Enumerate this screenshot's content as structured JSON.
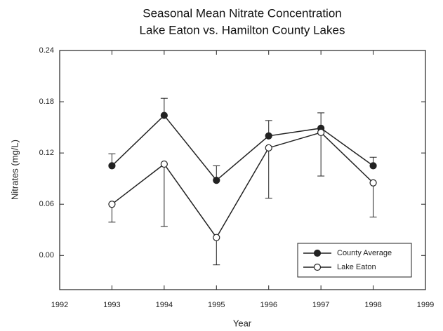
{
  "chart_data": {
    "type": "line",
    "title": [
      "Seasonal Mean Nitrate Concentration",
      "Lake Eaton vs. Hamilton County Lakes"
    ],
    "x_label": "Year",
    "y_label": "Nitrates (mg/L)",
    "x": [
      1993,
      1994,
      1995,
      1996,
      1997,
      1998
    ],
    "xlim": [
      1992,
      1999
    ],
    "xticks": [
      1992,
      1993,
      1994,
      1995,
      1996,
      1997,
      1998,
      1999
    ],
    "ylim": [
      -0.04,
      0.24
    ],
    "yticks": [
      {
        "value": 0,
        "label": "0.00"
      },
      0.06,
      0.12,
      0.18,
      0.24
    ],
    "legend_position": "lower right",
    "series": [
      {
        "name": "County Average",
        "color": "#222222",
        "marker": "filled",
        "values": [
          0.105,
          0.164,
          0.088,
          0.14,
          0.149,
          0.105
        ],
        "errors": [
          0.014,
          0.02,
          0.017,
          0.018,
          0.018,
          0.01
        ],
        "error_direction": "up"
      },
      {
        "name": "Lake Eaton",
        "color": "#222222",
        "marker": "open",
        "values": [
          0.06,
          0.107,
          0.021,
          0.126,
          0.144,
          0.085
        ],
        "errors": [
          0.021,
          0.073,
          0.032,
          0.059,
          0.051,
          0.04
        ],
        "error_direction": "down"
      }
    ]
  }
}
